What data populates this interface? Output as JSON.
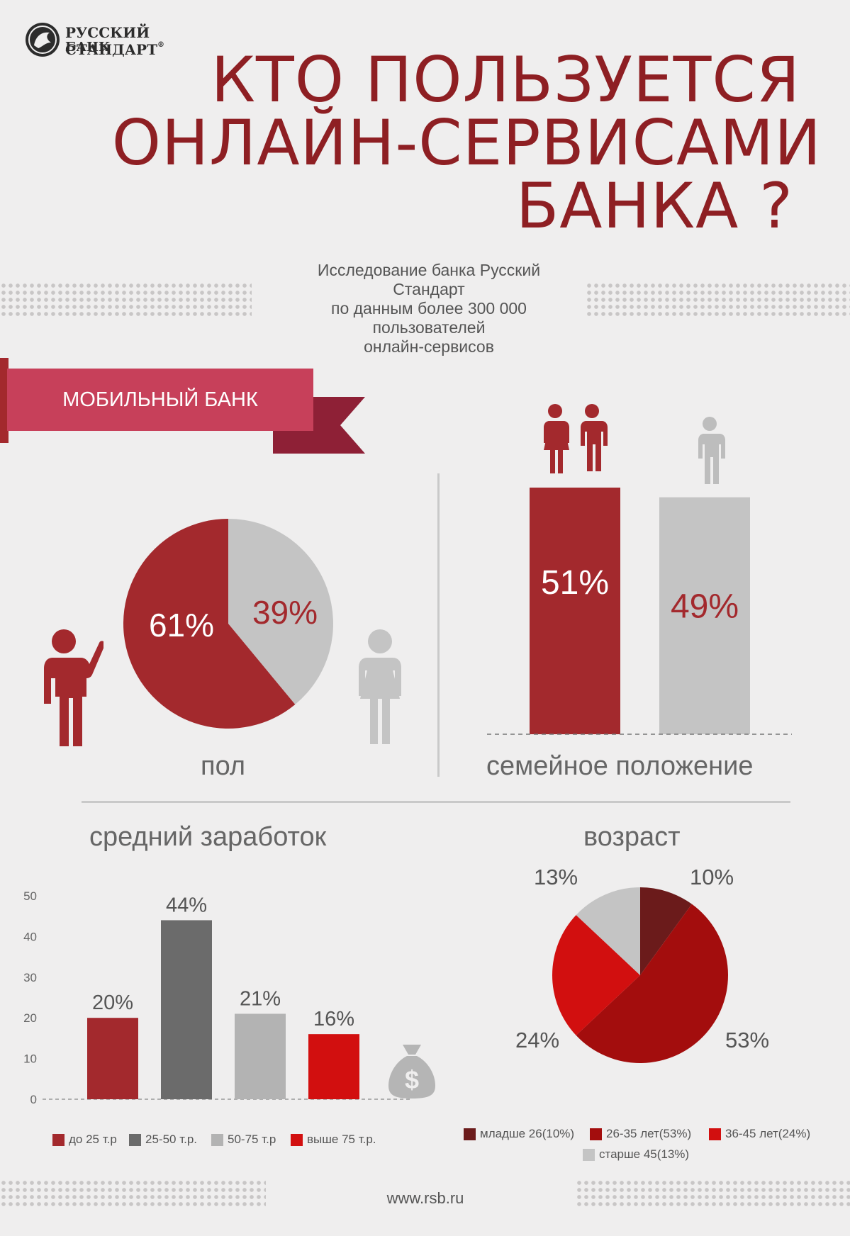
{
  "brand": {
    "name": "РУССКИЙ СТАНДАРТ",
    "sub": "БАНК",
    "reg": "®"
  },
  "title": {
    "line1": "КТО ПОЛЬЗУЕТСЯ",
    "line2": "ОНЛАЙН-СЕРВИСАМИ",
    "line3": "БАНКА ?"
  },
  "subtitle": {
    "l1": "Исследование банка Русский",
    "l2": "Стандарт",
    "l3": "по данным более 300 000",
    "l4": "пользователей",
    "l5": "онлайн-сервисов"
  },
  "ribbon": {
    "label": "МОБИЛЬНЫЙ БАНК"
  },
  "footer": {
    "url": "www.rsb.ru"
  },
  "colors": {
    "dark_red": "#a3292d",
    "light_gray": "#c4c4c4",
    "dark_gray": "#6b6b6b",
    "mid_gray": "#b3b3b3",
    "bright_red": "#d20f0f",
    "maroon": "#6b1b1b",
    "crimson": "#a30d0d",
    "title": "#8e1f23",
    "ribbon": "#c7405a"
  },
  "icons": [
    "bank-logo-icon",
    "man-icon",
    "woman-icon",
    "couple-icon",
    "single-person-icon",
    "money-bag-icon"
  ],
  "chart_data": [
    {
      "type": "pie",
      "title": "пол",
      "labels": [
        "61%",
        "39%"
      ],
      "values": [
        61,
        39
      ]
    },
    {
      "type": "bar",
      "title": "семейное положение",
      "labels": [
        "51%",
        "49%"
      ],
      "values": [
        51,
        49
      ]
    },
    {
      "type": "bar",
      "title": "средний заработок",
      "categories": [
        "до 25 т.р",
        "25-50 т.р.",
        "50-75 т.р",
        "выше 75 т.р."
      ],
      "values": [
        20,
        44,
        21,
        16
      ],
      "labels": [
        "20%",
        "44%",
        "21%",
        "16%"
      ],
      "ylim": [
        0,
        50
      ],
      "yticks": [
        "0",
        "10",
        "20",
        "30",
        "40",
        "50"
      ],
      "legend": "bottom"
    },
    {
      "type": "pie",
      "title": "возраст",
      "labels": [
        "10%",
        "53%",
        "24%",
        "13%"
      ],
      "values": [
        10,
        53,
        24,
        13
      ],
      "legend_entries": [
        "младше 26(10%)",
        "26-35 лет(53%)",
        "36-45 лет(24%)",
        "старше 45(13%)"
      ],
      "legend": "bottom"
    }
  ]
}
